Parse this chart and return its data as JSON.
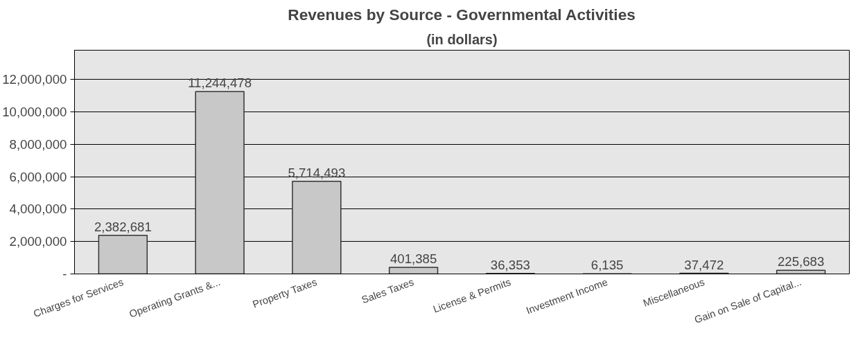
{
  "chart_data": {
    "type": "bar",
    "title": "Revenues by Source - Governmental Activities",
    "subtitle": "(in dollars)",
    "categories": [
      "Charges for Services",
      "Operating Grants &...",
      "Property Taxes",
      "Sales Taxes",
      "License & Permits",
      "Investment Income",
      "Miscellaneous",
      "Gain on Sale of Capital..."
    ],
    "values": [
      2382681,
      11244478,
      5714493,
      401385,
      36353,
      6135,
      37472,
      225683
    ],
    "color": "#c8c8c8",
    "ylim": [
      0,
      13800000
    ],
    "yticks": [
      {
        "value": 0,
        "label": "-"
      },
      {
        "value": 2000000,
        "label": "2,000,000"
      },
      {
        "value": 4000000,
        "label": "4,000,000"
      },
      {
        "value": 6000000,
        "label": "6,000,000"
      },
      {
        "value": 8000000,
        "label": "8,000,000"
      },
      {
        "value": 10000000,
        "label": "10,000,000"
      },
      {
        "value": 12000000,
        "label": "12,000,000"
      }
    ],
    "value_labels": [
      "2,382,681",
      "11,244,478",
      "5,714,493",
      "401,385",
      "36,353",
      "6,135",
      "37,472",
      "225,683"
    ],
    "grid": "y"
  }
}
